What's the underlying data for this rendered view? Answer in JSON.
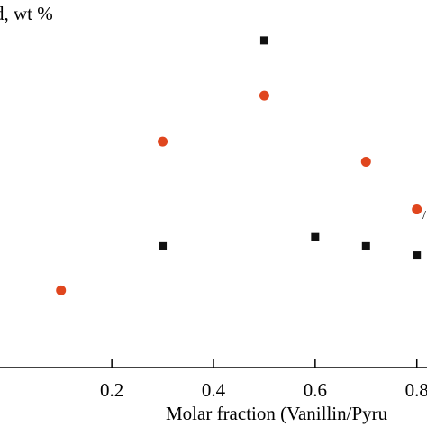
{
  "chart_data": {
    "type": "scatter",
    "title": "",
    "ylabel": "d, wt %",
    "xlabel": "Molar fraction (Vanillin/Pyru",
    "xlim": [
      -0.02,
      0.82
    ],
    "ylim": [
      0,
      1
    ],
    "x_ticks": [
      0.2,
      0.4,
      0.6,
      0.8
    ],
    "x_tick_labels": [
      "0.2",
      "0.4",
      "0.6",
      "0.8"
    ],
    "edge_glyph": "/",
    "series": [
      {
        "marker": "square",
        "color": "#111111",
        "x": [
          0.3,
          0.5,
          0.6,
          0.7,
          0.8
        ],
        "y": [
          0.33,
          0.89,
          0.355,
          0.33,
          0.305
        ]
      },
      {
        "marker": "circle",
        "color": "#e0461e",
        "x": [
          0.1,
          0.3,
          0.5,
          0.7,
          0.8
        ],
        "y": [
          0.21,
          0.615,
          0.74,
          0.56,
          0.43
        ]
      }
    ]
  }
}
